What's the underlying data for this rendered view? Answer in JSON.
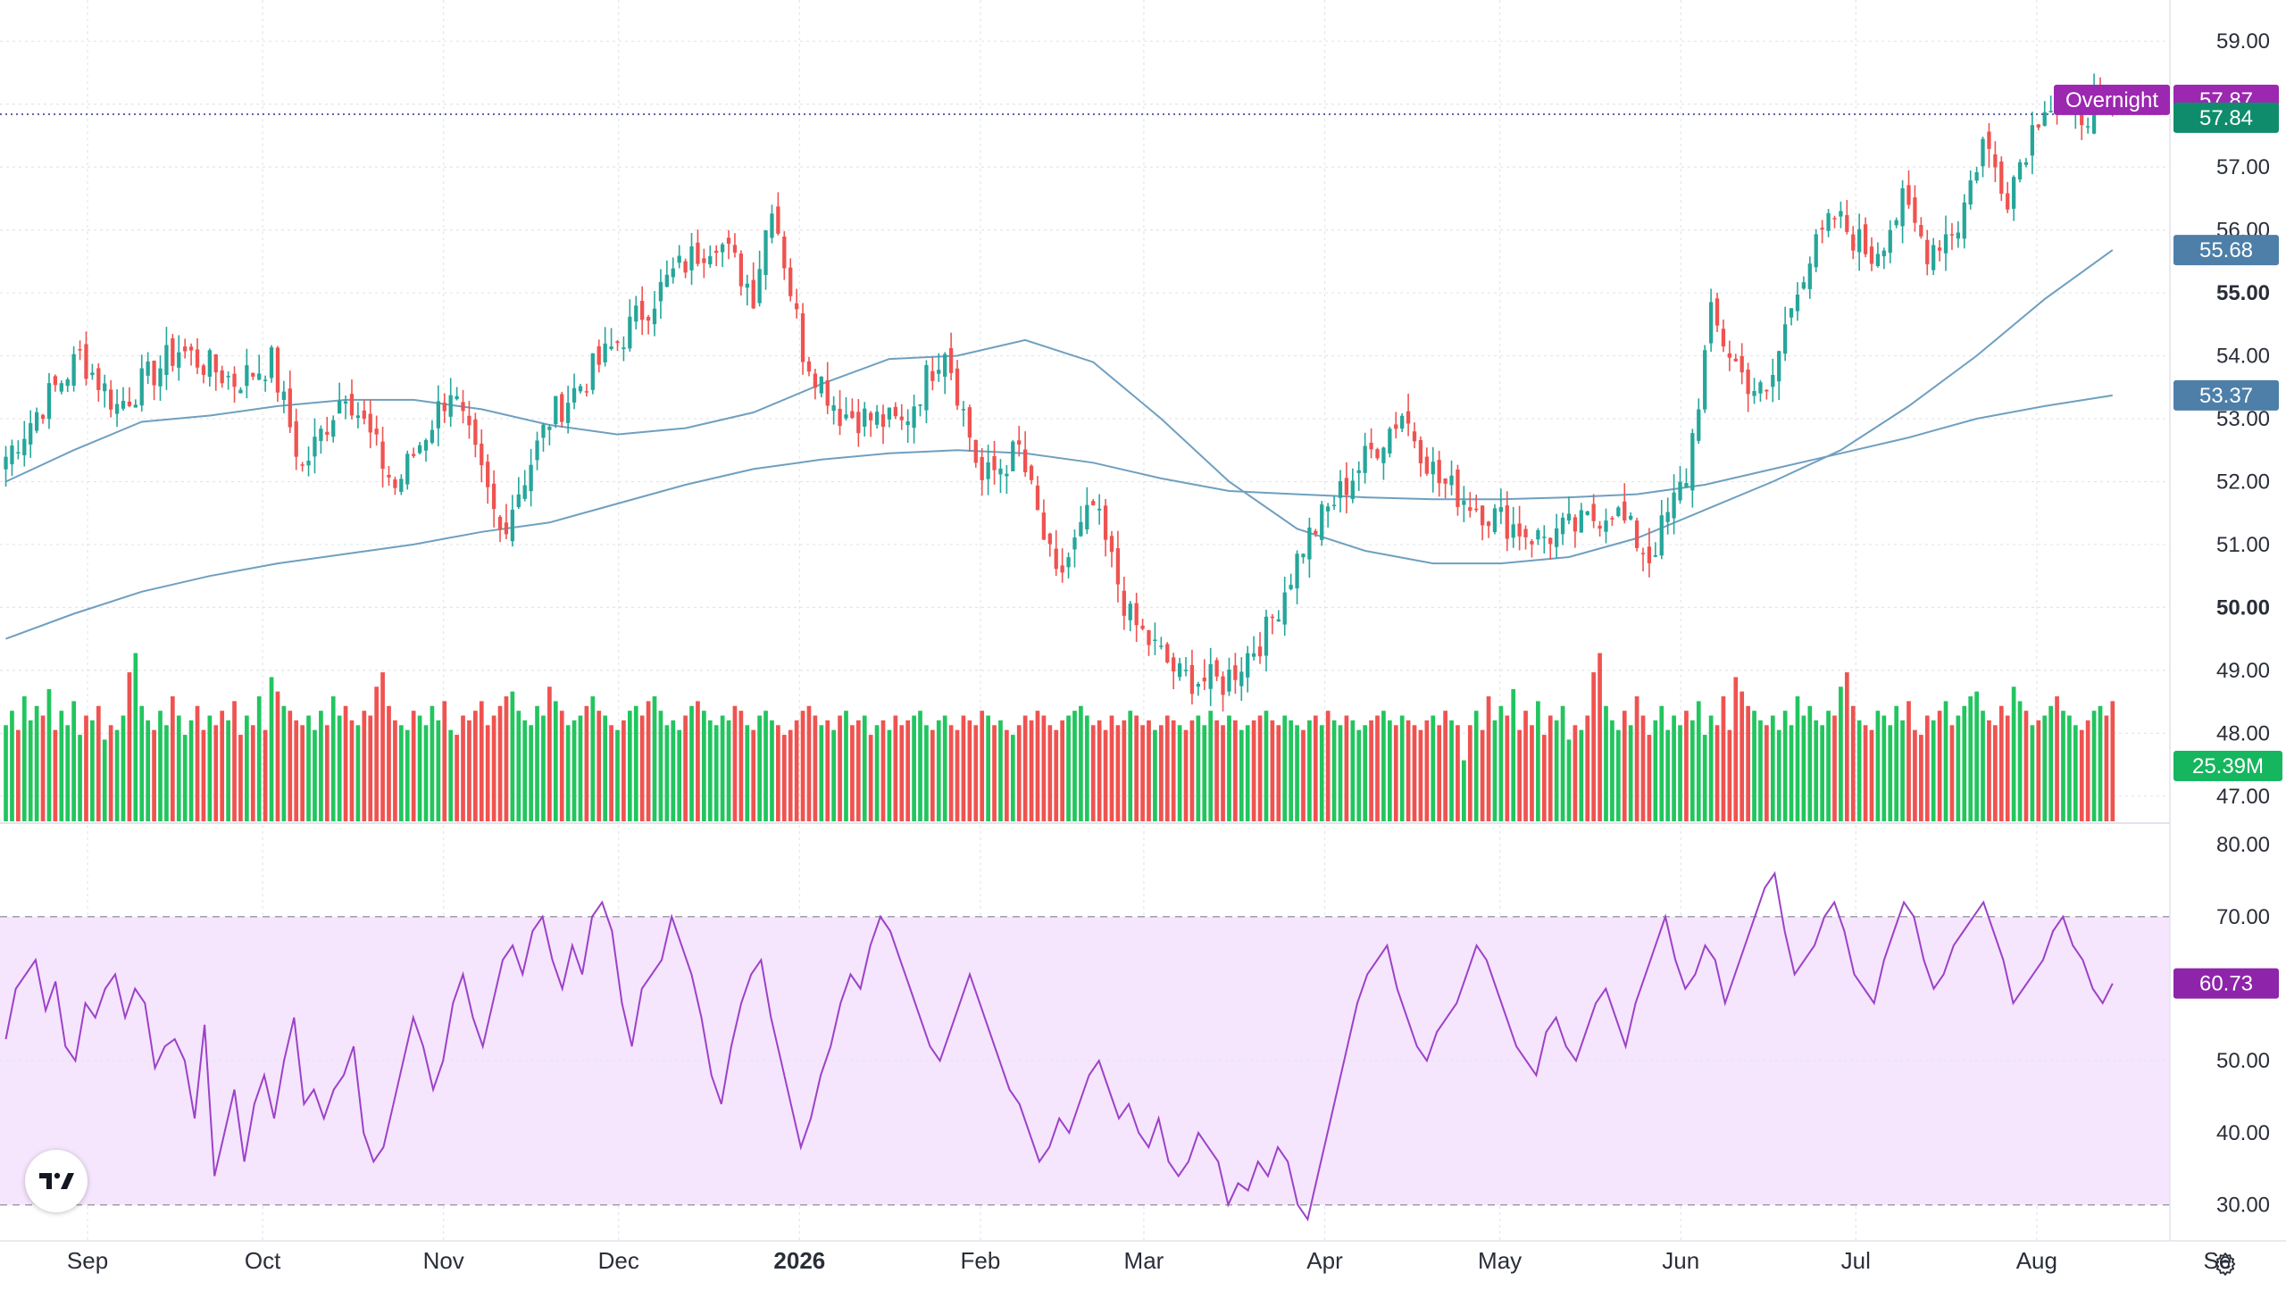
{
  "chart_data": {
    "type": "candlestick",
    "title": "",
    "price_axis": {
      "ylim": [
        46.6,
        59.4
      ],
      "ticks": [
        "59.00",
        "58.00",
        "57.00",
        "56.00",
        "55.00",
        "54.00",
        "53.00",
        "52.00",
        "51.00",
        "50.00",
        "49.00",
        "48.00",
        "47.00"
      ],
      "bold_ticks": [
        "55.00",
        "50.00"
      ]
    },
    "time_axis": {
      "labels": [
        {
          "label": "Sep",
          "date": "2025-09-01",
          "bold": false
        },
        {
          "label": "Oct",
          "date": "2025-10-01",
          "bold": false
        },
        {
          "label": "Nov",
          "date": "2025-11-01",
          "bold": false
        },
        {
          "label": "Dec",
          "date": "2025-12-01",
          "bold": false
        },
        {
          "label": "2026",
          "date": "2026-01-01",
          "bold": true
        },
        {
          "label": "Feb",
          "date": "2026-02-01",
          "bold": false
        },
        {
          "label": "Mar",
          "date": "2026-03-01",
          "bold": false
        },
        {
          "label": "Apr",
          "date": "2026-04-01",
          "bold": false
        },
        {
          "label": "May",
          "date": "2026-05-01",
          "bold": false
        },
        {
          "label": "Jun",
          "date": "2026-06-01",
          "bold": false
        },
        {
          "label": "Jul",
          "date": "2026-07-01",
          "bold": false
        },
        {
          "label": "Aug",
          "date": "2026-08-01",
          "bold": false
        },
        {
          "label": "Se",
          "date": "2026-09-01",
          "bold": false
        }
      ],
      "range": [
        "2025-08-17",
        "2026-09-02"
      ]
    },
    "series": [
      {
        "name": "",
        "type": "candlestick",
        "x_start": "2025-08-18",
        "x_end": "2026-08-14",
        "price_path": [
          [
            0,
            52.4
          ],
          [
            5,
            53.1
          ],
          [
            12,
            54.0
          ],
          [
            18,
            53.2
          ],
          [
            28,
            54.1
          ],
          [
            37,
            53.6
          ],
          [
            43,
            53.9
          ],
          [
            48,
            52.2
          ],
          [
            55,
            53.5
          ],
          [
            63,
            51.9
          ],
          [
            72,
            53.5
          ],
          [
            80,
            51.2
          ],
          [
            88,
            53.0
          ],
          [
            98,
            54.1
          ],
          [
            108,
            55.3
          ],
          [
            115,
            55.9
          ],
          [
            121,
            55.0
          ],
          [
            124,
            56.5
          ],
          [
            129,
            54.1
          ],
          [
            135,
            53.1
          ],
          [
            145,
            52.9
          ],
          [
            152,
            54.2
          ],
          [
            158,
            52.0
          ],
          [
            164,
            52.5
          ],
          [
            170,
            50.4
          ],
          [
            176,
            51.6
          ],
          [
            182,
            49.8
          ],
          [
            190,
            48.9
          ],
          [
            197,
            48.8
          ],
          [
            204,
            49.6
          ],
          [
            210,
            51.0
          ],
          [
            218,
            52.1
          ],
          [
            226,
            53.1
          ],
          [
            232,
            52.0
          ],
          [
            240,
            51.5
          ],
          [
            248,
            51.1
          ],
          [
            255,
            51.3
          ],
          [
            260,
            51.6
          ],
          [
            266,
            50.8
          ],
          [
            272,
            52.1
          ],
          [
            276,
            54.6
          ],
          [
            281,
            53.7
          ],
          [
            285,
            53.3
          ],
          [
            290,
            55.2
          ],
          [
            296,
            56.2
          ],
          [
            302,
            55.6
          ],
          [
            307,
            56.4
          ],
          [
            311,
            55.7
          ],
          [
            316,
            56.1
          ],
          [
            320,
            57.4
          ],
          [
            324,
            56.6
          ],
          [
            330,
            58.1
          ],
          [
            334,
            57.7
          ],
          [
            338,
            58.0
          ],
          [
            341,
            57.8
          ]
        ],
        "lows": [
          "47.85"
        ]
      },
      {
        "name": "",
        "type": "line",
        "color": "#6f9fc0",
        "values": [
          52.0,
          52.5,
          52.95,
          53.05,
          53.2,
          53.3,
          53.3,
          53.15,
          52.9,
          52.75,
          52.85,
          53.1,
          53.55,
          53.95,
          54.0,
          54.25,
          53.9,
          53.0,
          52.0,
          51.25,
          50.9,
          50.7,
          50.7,
          50.8,
          51.1,
          51.55,
          52.0,
          52.5,
          53.2,
          54.0,
          54.9,
          55.68
        ]
      },
      {
        "name": "",
        "type": "line",
        "color": "#6f9fc0",
        "values": [
          49.5,
          49.9,
          50.25,
          50.5,
          50.7,
          50.85,
          51.0,
          51.2,
          51.35,
          51.65,
          51.95,
          52.2,
          52.35,
          52.45,
          52.5,
          52.45,
          52.3,
          52.05,
          51.85,
          51.8,
          51.75,
          51.72,
          51.72,
          51.75,
          51.8,
          51.95,
          52.2,
          52.45,
          52.7,
          53.0,
          53.2,
          53.37
        ]
      },
      {
        "name": "",
        "type": "volume",
        "values_m": [
          40,
          46,
          38,
          52,
          42,
          48,
          44,
          55,
          38,
          46,
          40,
          50,
          36,
          44,
          42,
          48,
          34,
          40,
          38,
          44,
          62,
          70,
          48,
          42,
          38,
          46,
          40,
          52,
          44,
          36,
          42,
          48,
          38,
          44,
          40,
          46,
          42,
          50,
          36,
          44,
          40,
          52,
          38,
          60,
          54,
          48,
          46,
          42,
          40,
          44,
          38,
          46,
          40,
          52,
          44,
          48,
          42,
          40,
          46,
          44,
          56,
          62,
          48,
          42,
          40,
          38,
          46,
          44,
          40,
          48,
          42,
          50,
          38,
          36,
          44,
          42,
          46,
          50,
          40,
          44,
          48,
          52,
          54,
          46,
          42,
          40,
          48,
          44,
          56,
          50,
          46,
          40,
          42,
          44,
          48,
          52,
          46,
          44,
          40,
          38,
          42,
          46,
          48,
          44,
          50,
          52,
          46,
          40,
          42,
          38,
          44,
          48,
          50,
          46,
          42,
          40,
          44,
          42,
          48,
          46,
          40,
          38,
          44,
          46,
          42,
          40,
          36,
          38,
          42,
          46,
          48,
          44,
          40,
          42,
          38,
          44,
          46,
          40,
          42,
          44,
          36,
          40,
          42,
          38,
          44,
          40,
          42,
          44,
          46,
          40,
          38,
          42,
          44,
          40,
          38,
          44,
          42,
          40,
          46,
          44,
          40,
          42,
          38,
          36,
          40,
          44,
          42,
          46,
          44,
          40,
          38,
          42,
          44,
          46,
          48,
          44,
          40,
          42,
          38,
          44,
          40,
          42,
          46,
          44,
          40,
          42,
          38,
          40,
          44,
          42,
          40,
          38,
          42,
          44,
          40,
          46,
          42,
          40,
          44,
          42,
          38,
          40,
          42,
          44,
          46,
          42,
          40,
          44,
          42,
          40,
          38,
          42,
          44,
          40,
          46,
          42,
          40,
          44,
          42,
          38,
          40,
          42,
          44,
          46,
          42,
          40,
          44,
          42,
          40,
          38,
          42,
          44,
          40,
          46,
          42,
          40,
          25.39
        ]
      }
    ],
    "current": {
      "overnight_label": "Overnight",
      "overnight_price": "57.87",
      "last_price": "57.84",
      "ma_fast": "55.68",
      "ma_slow": "53.37",
      "volume": "25.39M"
    },
    "rsi": {
      "ylim": [
        25,
        82
      ],
      "ticks": [
        "80.00",
        "70.00",
        "50.00",
        "40.00",
        "30.00"
      ],
      "band": [
        30,
        70
      ],
      "current": "60.73",
      "values": [
        53,
        60,
        62,
        64,
        57,
        61,
        52,
        50,
        58,
        56,
        60,
        62,
        56,
        60,
        58,
        49,
        52,
        53,
        50,
        42,
        55,
        34,
        40,
        46,
        36,
        44,
        48,
        42,
        50,
        56,
        44,
        46,
        42,
        46,
        48,
        52,
        40,
        36,
        38,
        44,
        50,
        56,
        52,
        46,
        50,
        58,
        62,
        56,
        52,
        58,
        64,
        66,
        62,
        68,
        70,
        64,
        60,
        66,
        62,
        70,
        72,
        68,
        58,
        52,
        60,
        62,
        64,
        70,
        66,
        62,
        56,
        48,
        44,
        52,
        58,
        62,
        64,
        56,
        50,
        44,
        38,
        42,
        48,
        52,
        58,
        62,
        60,
        66,
        70,
        68,
        64,
        60,
        56,
        52,
        50,
        54,
        58,
        62,
        58,
        54,
        50,
        46,
        44,
        40,
        36,
        38,
        42,
        40,
        44,
        48,
        50,
        46,
        42,
        44,
        40,
        38,
        42,
        36,
        34,
        36,
        40,
        38,
        36,
        30,
        33,
        32,
        36,
        34,
        38,
        36,
        30,
        28,
        34,
        40,
        46,
        52,
        58,
        62,
        64,
        66,
        60,
        56,
        52,
        50,
        54,
        56,
        58,
        62,
        66,
        64,
        60,
        56,
        52,
        50,
        48,
        54,
        56,
        52,
        50,
        54,
        58,
        60,
        56,
        52,
        58,
        62,
        66,
        70,
        64,
        60,
        62,
        66,
        64,
        58,
        62,
        66,
        70,
        74,
        76,
        68,
        62,
        64,
        66,
        70,
        72,
        68,
        62,
        60,
        58,
        64,
        68,
        72,
        70,
        64,
        60,
        62,
        66,
        68,
        70,
        72,
        68,
        64,
        58,
        60,
        62,
        64,
        68,
        70,
        66,
        64,
        60,
        58,
        60.73
      ]
    },
    "colors": {
      "up": "#26a69a",
      "up_volume": "#22c55e",
      "down": "#ef5350",
      "ma": "#6f9fc0",
      "rsi_line": "#9c42c8",
      "rsi_band_fill": "#f5e5fd",
      "overnight_badge": "#9c27b0",
      "last_badge": "#0f8c6c",
      "ma_badge": "#4d7fa8",
      "volume_badge": "#16b65f",
      "rsi_badge": "#8e24aa",
      "grid": "#e3e6eb",
      "axis_text": "#2a2e39"
    }
  }
}
